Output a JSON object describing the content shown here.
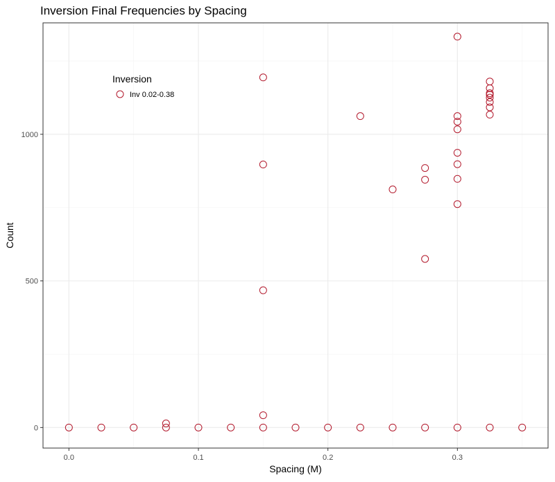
{
  "chart_data": {
    "type": "scatter",
    "title": "Inversion Final Frequencies by Spacing",
    "xlabel": "Spacing (M)",
    "ylabel": "Count",
    "xlim": [
      -0.02,
      0.37
    ],
    "ylim": [
      -70,
      1380
    ],
    "x_ticks": [
      0.0,
      0.1,
      0.2,
      0.3
    ],
    "x_tick_labels": [
      "0.0",
      "0.1",
      "0.2",
      "0.3"
    ],
    "x_minor_ticks": [
      0.05,
      0.15,
      0.25,
      0.35
    ],
    "y_ticks": [
      0,
      500,
      1000
    ],
    "y_tick_labels": [
      "0",
      "500",
      "1000"
    ],
    "y_minor_ticks": [
      250,
      750,
      1250
    ],
    "grid": true,
    "legend": {
      "title": "Inversion",
      "placement": "inside-top-left",
      "entries": [
        {
          "name": "Inv 0.02-0.38",
          "color": "#b2182b"
        }
      ]
    },
    "series": [
      {
        "name": "Inv 0.02-0.38",
        "color": "#b2182b",
        "marker": "open-circle",
        "points": [
          [
            0.0,
            0
          ],
          [
            0.025,
            0
          ],
          [
            0.05,
            0
          ],
          [
            0.075,
            0
          ],
          [
            0.075,
            14
          ],
          [
            0.1,
            0
          ],
          [
            0.125,
            0
          ],
          [
            0.15,
            0
          ],
          [
            0.15,
            42
          ],
          [
            0.15,
            468
          ],
          [
            0.15,
            897
          ],
          [
            0.15,
            1194
          ],
          [
            0.175,
            0
          ],
          [
            0.2,
            0
          ],
          [
            0.225,
            0
          ],
          [
            0.225,
            1062
          ],
          [
            0.25,
            0
          ],
          [
            0.25,
            812
          ],
          [
            0.275,
            0
          ],
          [
            0.275,
            575
          ],
          [
            0.275,
            845
          ],
          [
            0.275,
            885
          ],
          [
            0.3,
            0
          ],
          [
            0.3,
            762
          ],
          [
            0.3,
            848
          ],
          [
            0.3,
            898
          ],
          [
            0.3,
            937
          ],
          [
            0.3,
            1017
          ],
          [
            0.3,
            1043
          ],
          [
            0.3,
            1062
          ],
          [
            0.3,
            1333
          ],
          [
            0.325,
            0
          ],
          [
            0.325,
            1067
          ],
          [
            0.325,
            1092
          ],
          [
            0.325,
            1110
          ],
          [
            0.325,
            1125
          ],
          [
            0.325,
            1135
          ],
          [
            0.325,
            1140
          ],
          [
            0.325,
            1157
          ],
          [
            0.325,
            1180
          ],
          [
            0.35,
            0
          ]
        ]
      }
    ]
  }
}
